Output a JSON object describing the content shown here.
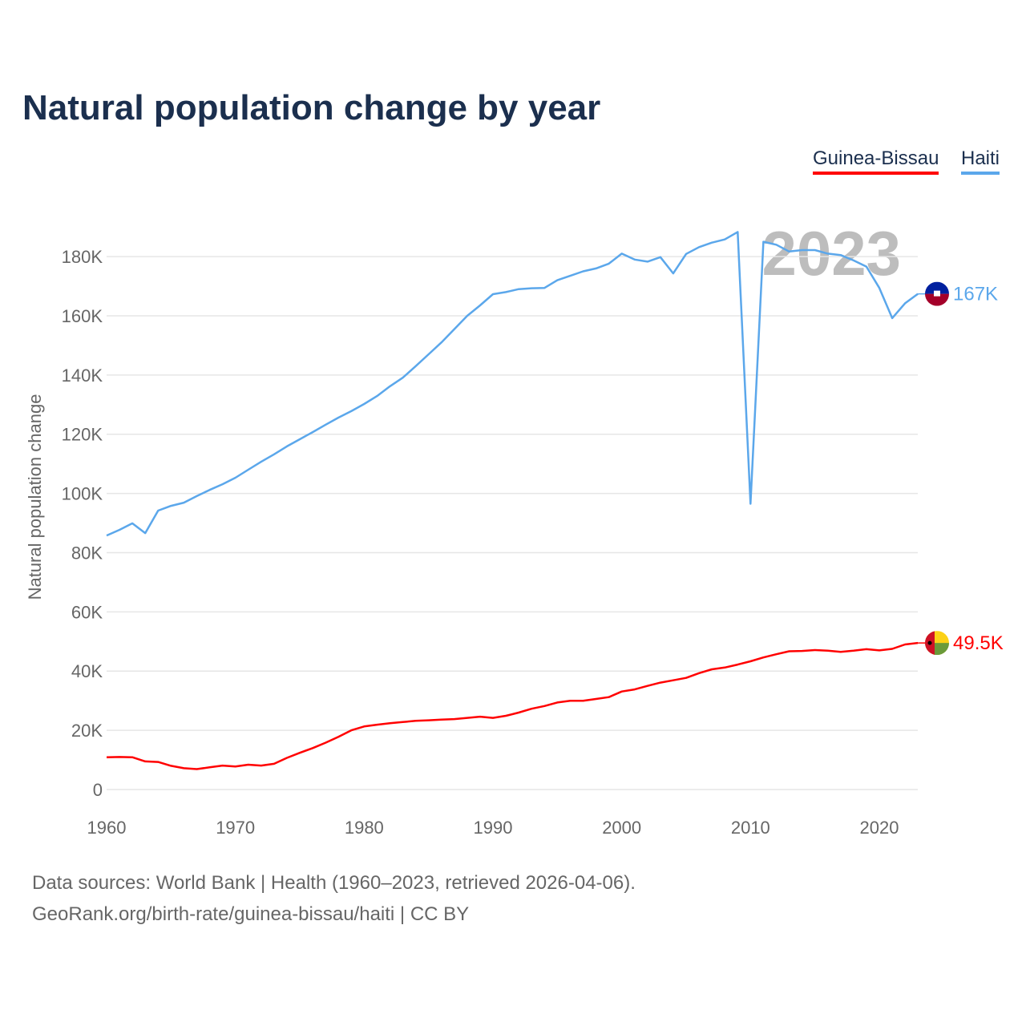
{
  "chart_data": {
    "type": "line",
    "title": "Natural population change by year",
    "xlabel": "",
    "ylabel": "Natural population change",
    "xlim": [
      1960,
      2023
    ],
    "ylim": [
      0,
      190000
    ],
    "grid": true,
    "legend_position": "top-right",
    "year_watermark": "2023",
    "x_ticks": [
      1960,
      1970,
      1980,
      1990,
      2000,
      2010,
      2020
    ],
    "x_tick_labels": [
      "1960",
      "1970",
      "1980",
      "1990",
      "2000",
      "2010",
      "2020"
    ],
    "y_ticks": [
      0,
      20000,
      40000,
      60000,
      80000,
      100000,
      120000,
      140000,
      160000,
      180000
    ],
    "y_tick_labels": [
      "0",
      "20K",
      "40K",
      "60K",
      "80K",
      "100K",
      "120K",
      "140K",
      "160K",
      "180K"
    ],
    "x": [
      1960,
      1961,
      1962,
      1963,
      1964,
      1965,
      1966,
      1967,
      1968,
      1969,
      1970,
      1971,
      1972,
      1973,
      1974,
      1975,
      1976,
      1977,
      1978,
      1979,
      1980,
      1981,
      1982,
      1983,
      1984,
      1985,
      1986,
      1987,
      1988,
      1989,
      1990,
      1991,
      1992,
      1993,
      1994,
      1995,
      1996,
      1997,
      1998,
      1999,
      2000,
      2001,
      2002,
      2003,
      2004,
      2005,
      2006,
      2007,
      2008,
      2009,
      2010,
      2011,
      2012,
      2013,
      2014,
      2015,
      2016,
      2017,
      2018,
      2019,
      2020,
      2021,
      2022,
      2023
    ],
    "series": [
      {
        "name": "Guinea-Bissau",
        "color": "#ff0000",
        "end_label": "49.5K",
        "flag": "guinea-bissau-flag",
        "values": [
          10900,
          11000,
          10900,
          9500,
          9300,
          8000,
          7200,
          6900,
          7500,
          8100,
          7800,
          8400,
          8100,
          8700,
          10700,
          12400,
          14000,
          15800,
          17800,
          20000,
          21300,
          21900,
          22400,
          22800,
          23200,
          23400,
          23600,
          23800,
          24200,
          24600,
          24200,
          24900,
          26000,
          27300,
          28200,
          29400,
          30000,
          30000,
          30600,
          31200,
          33100,
          33800,
          35000,
          36100,
          36900,
          37700,
          39300,
          40600,
          41200,
          42200,
          43300,
          44600,
          45700,
          46700,
          46800,
          47100,
          46900,
          46500,
          46900,
          47400,
          47000,
          47500,
          49000,
          49500
        ]
      },
      {
        "name": "Haiti",
        "color": "#5ba7eb",
        "end_label": "167K",
        "flag": "haiti-flag",
        "values": [
          85800,
          87700,
          89900,
          86600,
          94200,
          95800,
          96900,
          99100,
          101200,
          103100,
          105300,
          108000,
          110700,
          113200,
          115900,
          118300,
          120700,
          123200,
          125600,
          127800,
          130200,
          132900,
          136200,
          139100,
          143000,
          147000,
          151000,
          155500,
          160000,
          163500,
          167300,
          168000,
          169000,
          169300,
          169400,
          172000,
          173500,
          175000,
          176000,
          177600,
          181000,
          179000,
          178300,
          179800,
          174300,
          180900,
          183200,
          184700,
          185800,
          188300,
          96500,
          185000,
          184000,
          181700,
          182200,
          182200,
          181000,
          180500,
          178700,
          176600,
          169400,
          159200,
          164200,
          167400
        ]
      }
    ]
  },
  "footer": {
    "sources": "Data sources: World Bank | Health (1960–2023, retrieved 2026-04-06).",
    "credit": "GeoRank.org/birth-rate/guinea-bissau/haiti | CC BY"
  }
}
